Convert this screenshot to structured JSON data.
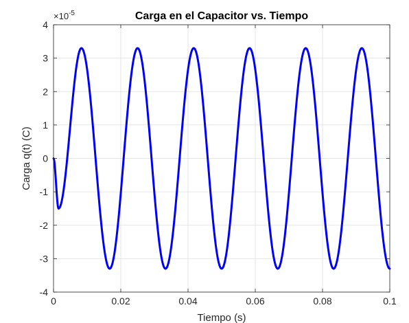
{
  "chart_data": {
    "type": "line",
    "title": "Carga en el Capacitor vs. Tiempo",
    "xlabel": "Tiempo (s)",
    "ylabel": "Carga q(t) (C)",
    "xlim": [
      0,
      0.1
    ],
    "ylim": [
      -4,
      4
    ],
    "y_multiplier_text": "×10",
    "y_multiplier_exponent": "-5",
    "y_scale_factor": 1e-05,
    "grid": true,
    "x_ticks": [
      0,
      0.02,
      0.04,
      0.06,
      0.08,
      0.1
    ],
    "x_tick_labels": [
      "0",
      "0.02",
      "0.04",
      "0.06",
      "0.08",
      "0.1"
    ],
    "y_ticks": [
      -4,
      -3,
      -2,
      -1,
      0,
      1,
      2,
      3,
      4
    ],
    "y_tick_labels": [
      "-4",
      "-3",
      "-2",
      "-1",
      "0",
      "1",
      "2",
      "3",
      "4"
    ],
    "series": [
      {
        "color": "#0000ff",
        "x": [
          0,
          0.0015,
          0.0083,
          0.0167,
          0.025,
          0.0333,
          0.0417,
          0.05,
          0.0583,
          0.0667,
          0.075,
          0.0833,
          0.0917,
          0.1
        ],
        "y": [
          0,
          -1.5,
          3.3,
          -3.3,
          3.3,
          -3.3,
          3.3,
          -3.3,
          3.3,
          -3.3,
          3.3,
          -3.3,
          3.3,
          -3.3
        ]
      }
    ]
  }
}
